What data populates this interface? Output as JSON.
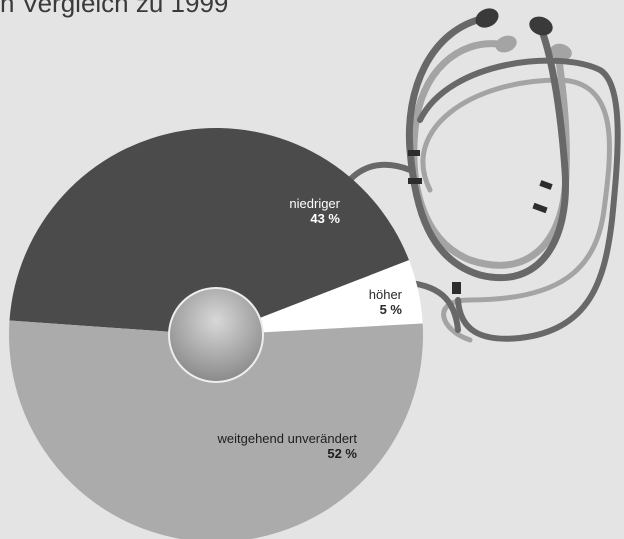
{
  "caption": "n Vergleich zu 1999",
  "colors": {
    "background": "#e4e4e4",
    "slice_dark": "#4b4b4b",
    "slice_light": "#ababab",
    "slice_white": "#ffffff",
    "stethoscope_dark": "#686868",
    "stethoscope_light": "#a4a4a4"
  },
  "chart_data": {
    "type": "pie",
    "slices": [
      {
        "label": "niedriger",
        "value": 43,
        "display": "43 %",
        "color": "#4b4b4b",
        "text_color": "#ffffff"
      },
      {
        "label": "höher",
        "value": 5,
        "display": "5 %",
        "color": "#ffffff",
        "text_color": "#2a2a2a"
      },
      {
        "label": "weitgehend unverändert",
        "value": 52,
        "display": "52 %",
        "color": "#ababab",
        "text_color": "#1e1e1e"
      }
    ]
  }
}
